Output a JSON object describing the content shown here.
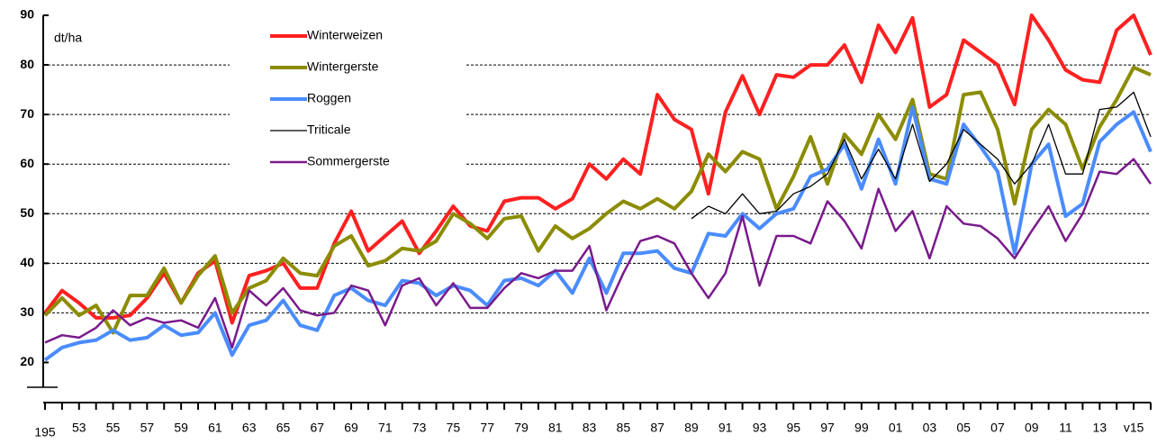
{
  "chart_data": {
    "type": "line",
    "y_label": "dt/ha",
    "categories": [
      "195",
      null,
      "53",
      null,
      "55",
      null,
      "57",
      null,
      "59",
      null,
      "61",
      null,
      "63",
      null,
      "65",
      null,
      "67",
      null,
      "69",
      null,
      "71",
      null,
      "73",
      null,
      "75",
      null,
      "77",
      null,
      "79",
      null,
      "81",
      null,
      "83",
      null,
      "85",
      null,
      "87",
      null,
      "89",
      null,
      "91",
      null,
      "93",
      null,
      "95",
      null,
      "97",
      null,
      "99",
      null,
      "01",
      null,
      "03",
      null,
      "05",
      null,
      "07",
      null,
      "09",
      null,
      "11",
      null,
      "13",
      null,
      "v15",
      null
    ],
    "ylim": [
      15,
      90
    ],
    "yticks": [
      20,
      30,
      40,
      50,
      60,
      70,
      80,
      90
    ],
    "grid": true,
    "legend": "top-left",
    "series": [
      {
        "name": "Winterweizen",
        "color": "#ff2020",
        "values": [
          30,
          34.5,
          32,
          29,
          29,
          29.5,
          33,
          38,
          32,
          38,
          40.5,
          28,
          37.5,
          38.5,
          40,
          35,
          35,
          44,
          50.5,
          42.5,
          45.5,
          48.5,
          42,
          46.5,
          51.5,
          47.5,
          46.5,
          52.5,
          53.2,
          53.2,
          51,
          53,
          60,
          57,
          61,
          58,
          74,
          69,
          67,
          54,
          70.5,
          77.8,
          70,
          78,
          77.5,
          80,
          80,
          84,
          76.5,
          88,
          82.5,
          89.5,
          71.5,
          74,
          85,
          82.5,
          80,
          72,
          90,
          85,
          79,
          77,
          76.5,
          87,
          90,
          82
        ]
      },
      {
        "name": "Wintergerste",
        "color": "#8c8c00",
        "values": [
          29.5,
          33,
          29.5,
          31.5,
          26,
          33.5,
          33.5,
          39,
          32,
          37.5,
          41.5,
          30,
          35,
          36.5,
          41,
          38,
          37.5,
          43.5,
          45.5,
          39.5,
          40.5,
          43,
          42.5,
          44.5,
          50,
          48,
          45,
          49,
          49.5,
          42.5,
          47.5,
          45,
          47,
          50,
          52.5,
          51,
          53,
          51,
          54.5,
          62,
          58.5,
          62.5,
          61,
          51,
          57.5,
          65.5,
          56,
          66,
          62,
          70,
          65,
          73,
          58,
          57,
          74,
          74.5,
          67,
          52,
          67,
          71,
          68,
          59,
          67.5,
          73,
          79.5,
          78
        ]
      },
      {
        "name": "Roggen",
        "color": "#4a8cff",
        "values": [
          20.5,
          23,
          24,
          24.5,
          26.5,
          24.5,
          25,
          27.5,
          25.5,
          26,
          30,
          21.5,
          27.5,
          28.5,
          32.5,
          27.5,
          26.5,
          33.5,
          35,
          32.5,
          31.5,
          36.5,
          36,
          33.5,
          35.5,
          34.5,
          31.5,
          36.5,
          37,
          35.5,
          38.5,
          34,
          41,
          34,
          42,
          42,
          42.5,
          39,
          38,
          46,
          45.5,
          50,
          47,
          50,
          51,
          57.5,
          59,
          64,
          55,
          65,
          56,
          71.5,
          57,
          56,
          68,
          63.5,
          58.5,
          42,
          60,
          64,
          49.5,
          52,
          64.5,
          68,
          70.5,
          62.5
        ]
      },
      {
        "name": "Triticale",
        "color": "#000000",
        "values": [
          null,
          null,
          null,
          null,
          null,
          null,
          null,
          null,
          null,
          null,
          null,
          null,
          null,
          null,
          null,
          null,
          null,
          null,
          null,
          null,
          null,
          null,
          null,
          null,
          null,
          null,
          null,
          null,
          null,
          null,
          null,
          null,
          null,
          null,
          null,
          null,
          null,
          null,
          49,
          51.5,
          50,
          54,
          50,
          50.5,
          54,
          55.5,
          58,
          65,
          57,
          63,
          57,
          68,
          56.5,
          60,
          67,
          64,
          61,
          56,
          60,
          68,
          58,
          58,
          71,
          71.5,
          74.5,
          65.5
        ]
      },
      {
        "name": "Sommergerste",
        "color": "#7a1a8c",
        "values": [
          24,
          25.5,
          25,
          27,
          30.5,
          27.5,
          29,
          28,
          28.5,
          27,
          33,
          23,
          34.5,
          31.5,
          35,
          30.5,
          29.5,
          30,
          35.5,
          34.5,
          27.5,
          35.5,
          37,
          31.5,
          36,
          31,
          31,
          35,
          38,
          37,
          38.5,
          38.5,
          43.5,
          30.5,
          38,
          44.5,
          45.5,
          44,
          38,
          33,
          38,
          49.5,
          35.5,
          45.5,
          45.5,
          44,
          52.5,
          48.5,
          43,
          55,
          46.5,
          50.5,
          41,
          51.5,
          48,
          47.5,
          45,
          41,
          46.5,
          51.5,
          44.5,
          50,
          58.5,
          58,
          61,
          56
        ]
      }
    ]
  }
}
